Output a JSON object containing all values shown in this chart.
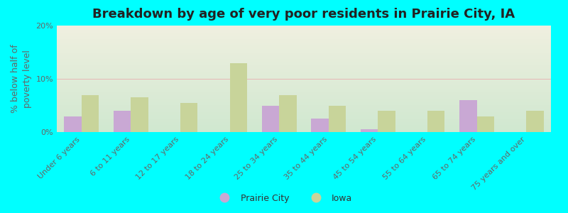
{
  "title": "Breakdown by age of very poor residents in Prairie City, IA",
  "ylabel": "% below half of\npoverty level",
  "categories": [
    "Under 6 years",
    "6 to 11 years",
    "12 to 17 years",
    "18 to 24 years",
    "25 to 34 years",
    "35 to 44 years",
    "45 to 54 years",
    "55 to 64 years",
    "65 to 74 years",
    "75 years and over"
  ],
  "prairie_city": [
    3.0,
    4.0,
    0.0,
    0.0,
    5.0,
    2.5,
    0.5,
    0.0,
    6.0,
    0.0
  ],
  "iowa": [
    7.0,
    6.5,
    5.5,
    13.0,
    7.0,
    5.0,
    4.0,
    4.0,
    3.0,
    4.0
  ],
  "prairie_city_color": "#c9a8d4",
  "iowa_color": "#c8d49a",
  "background_color": "#00ffff",
  "plot_bg_top": "#f0f0e0",
  "plot_bg_bottom": "#d0e8d0",
  "ylim": [
    0,
    20
  ],
  "yticks": [
    0,
    10,
    20
  ],
  "ytick_labels": [
    "0%",
    "10%",
    "20%"
  ],
  "title_fontsize": 13,
  "axis_fontsize": 9,
  "tick_fontsize": 8,
  "legend_prairie": "Prairie City",
  "legend_iowa": "Iowa",
  "bar_width": 0.35
}
